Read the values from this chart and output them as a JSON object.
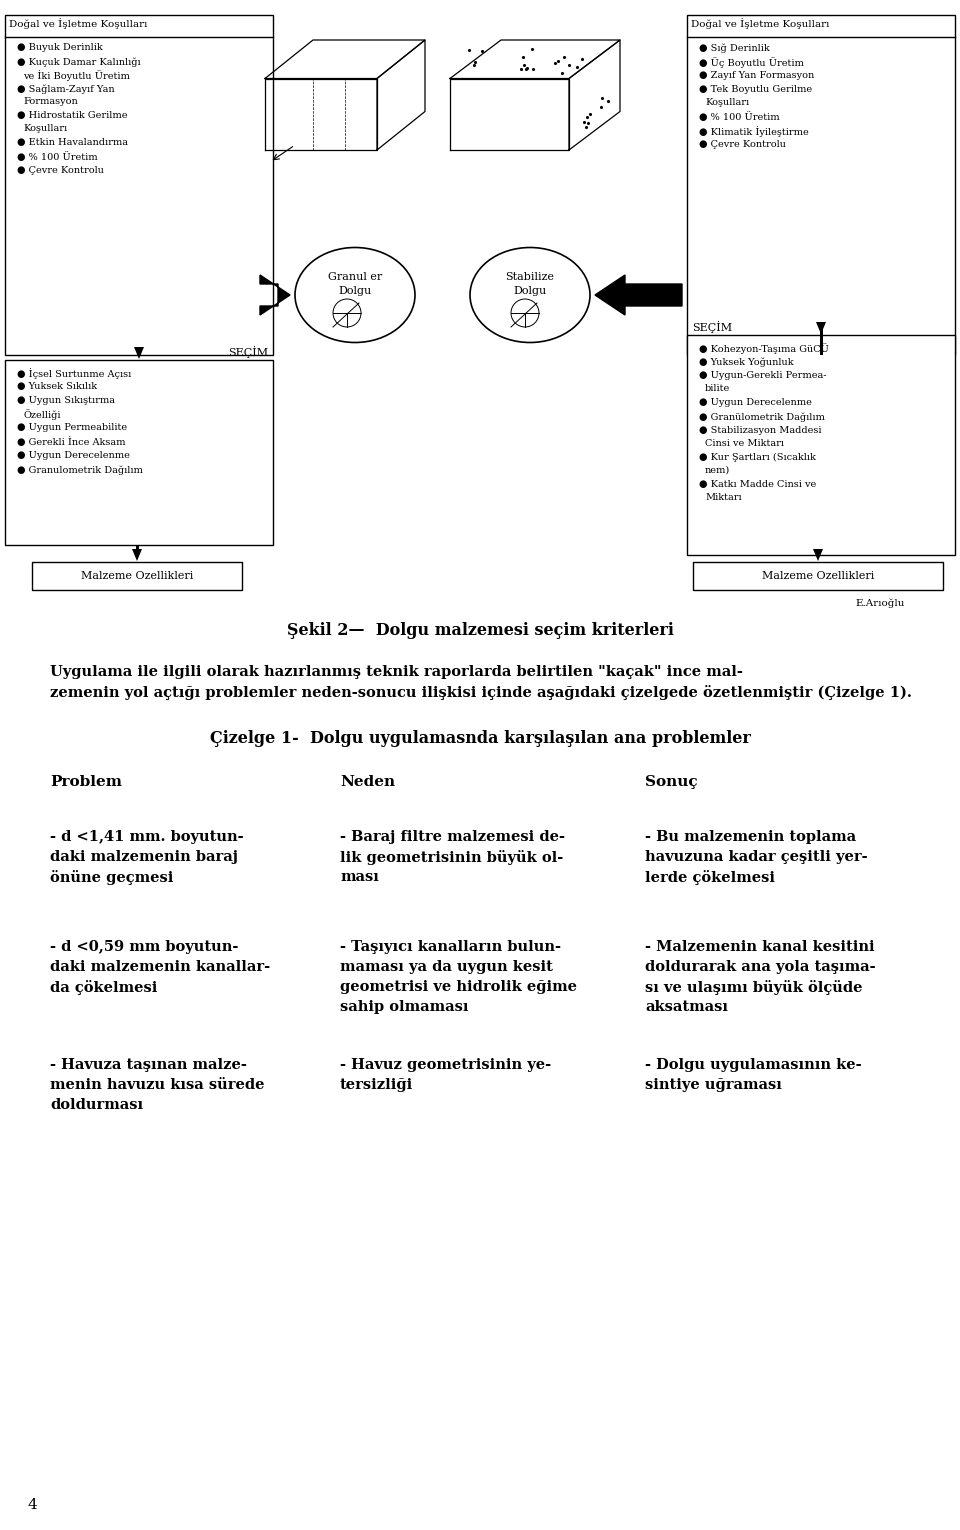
{
  "bg_color": "#ffffff",
  "left_box_title": "Doğal ve İşletme Koşulları",
  "left_box_items": [
    "Buyuk Derinlik",
    "Kuçuk Damar Kalınlığı\nve İki Boyutlu Üretim",
    "Sağlam-Zayıf Yan\nFormasyon",
    "Hidrostatik Gerilme\nKoşulları",
    "Etkin Havalandırma",
    "% 100 Üretim",
    "Çevre Kontrolu"
  ],
  "right_box_title": "Doğal ve İşletme Koşulları",
  "right_box_items": [
    "Sığ Derinlik",
    "Üç Boyutlu Üretim",
    "Zayıf Yan Formasyon",
    "Tek Boyutlu Gerilme\nKoşulları",
    "% 100 Üretim",
    "Klimatik İyileştirme",
    "Çevre Kontrolu"
  ],
  "left_secim_label": "SEÇİM",
  "left_secim_items": [
    "İçsel Surtunme Açısı",
    "Yuksek Sıkılık",
    "Uygun Sıkıştırma\nÖzelliği",
    "Uygun Permeabilite",
    "Gerekli İnce Aksam",
    "Uygun Derecelenme",
    "Granulometrik Dağılım"
  ],
  "right_secim_label": "SEÇİM",
  "right_secim_items": [
    "Kohezyon-Taşıma GüCÜ",
    "Yuksek Yoğunluk",
    "Uygun-Gerekli Permea-\nbilite",
    "Uygun Derecelenme",
    "Granülometrik Dağılım",
    "Stabilizasyon Maddesi\nCinsi ve Miktarı",
    "Kur Şartları (Sıcaklık\nnem)",
    "Katkı Madde Cinsi ve\nMiktarı"
  ],
  "granule_label1": "Granul er",
  "granule_label2": "Dolgu",
  "stabilize_label1": "Stabilize",
  "stabilize_label2": "Dolgu",
  "left_bottom_box": "Malzeme Ozellikleri",
  "right_bottom_box": "Malzeme Ozellikleri",
  "author": "E.Arıoğlu",
  "sekil_text": "Şekil 2—  Dolgu malzemesi seçim kriterleri",
  "para_line1": "Uygulama ile ilgili olarak hazırlanmış teknik raporlarda belirtilen \"kaçak\" ince mal-",
  "para_line2": "zemenin yol açtığı problemler neden-sonucu ilişkisi içinde aşağıdaki çizelgede özetlenmiştir (Çizelge 1).",
  "cizelge_title": "Çizelge 1-  Dolgu uygulamasnda karşılaşılan ana problemler",
  "table_headers": [
    "Problem",
    "Neden",
    "Sonuç"
  ],
  "table_rows": [
    {
      "problem": [
        "- d <1,41 mm. boyutun-",
        "daki malzemenin baraj",
        "önüne geçmesi"
      ],
      "neden": [
        "- Baraj filtre malzemesi de-",
        "lik geometrisinin büyük ol-",
        "ması"
      ],
      "sonuc": [
        "- Bu malzemenin toplama",
        "havuzuna kadar çeşitli yer-",
        "lerde çökelmesi"
      ]
    },
    {
      "problem": [
        "- d <0,59 mm boyutun-",
        "daki malzemenin kanallar-",
        "da çökelmesi"
      ],
      "neden": [
        "- Taşıyıcı kanalların bulun-",
        "maması ya da uygun kesit",
        "geometrisi ve hidrolik eğime",
        "sahip olmaması"
      ],
      "sonuc": [
        "- Malzemenin kanal kesitini",
        "doldurarak ana yola taşıma-",
        "sı ve ulaşımı büyük ölçüde",
        "aksatması"
      ]
    },
    {
      "problem": [
        "- Havuza taşınan malze-",
        "menin havuzu kısa sürede",
        "doldurması"
      ],
      "neden": [
        "- Havuz geometrisinin ye-",
        "tersizliği"
      ],
      "sonuc": [
        "- Dolgu uygulamasının ke-",
        "sintiye uğraması"
      ]
    }
  ],
  "page_number": "4"
}
